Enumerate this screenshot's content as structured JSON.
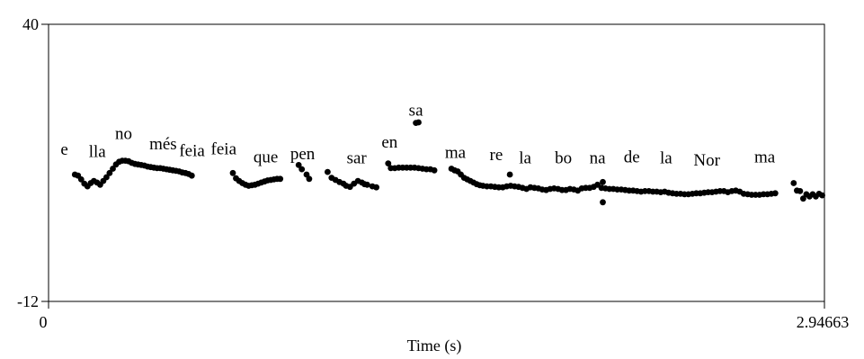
{
  "chart_data": {
    "type": "scatter",
    "xlabel": "Time (s)",
    "ylabel": "",
    "xlim": [
      0,
      2.94663
    ],
    "ylim": [
      -12,
      40
    ],
    "x_tick_labels": [
      "0",
      "2.94663"
    ],
    "y_tick_labels": [
      "40",
      "-12"
    ],
    "grid": false,
    "syllables": [
      {
        "text": "e",
        "x": 0.06,
        "y": 15.5
      },
      {
        "text": "lla",
        "x": 0.185,
        "y": 15.1
      },
      {
        "text": "no",
        "x": 0.285,
        "y": 18.5
      },
      {
        "text": "més",
        "x": 0.435,
        "y": 16.5
      },
      {
        "text": "feia",
        "x": 0.545,
        "y": 15.3
      },
      {
        "text": "feia",
        "x": 0.665,
        "y": 15.6
      },
      {
        "text": "que",
        "x": 0.825,
        "y": 14.1
      },
      {
        "text": "pen",
        "x": 0.965,
        "y": 14.7
      },
      {
        "text": "sar",
        "x": 1.17,
        "y": 13.9
      },
      {
        "text": "en",
        "x": 1.295,
        "y": 16.9
      },
      {
        "text": "sa",
        "x": 1.395,
        "y": 22.9
      },
      {
        "text": "ma",
        "x": 1.545,
        "y": 14.9
      },
      {
        "text": "re",
        "x": 1.7,
        "y": 14.5
      },
      {
        "text": "la",
        "x": 1.81,
        "y": 13.9
      },
      {
        "text": "bo",
        "x": 1.955,
        "y": 13.9
      },
      {
        "text": "na",
        "x": 2.085,
        "y": 13.9
      },
      {
        "text": "de",
        "x": 2.215,
        "y": 14.1
      },
      {
        "text": "la",
        "x": 2.345,
        "y": 13.9
      },
      {
        "text": "Nor",
        "x": 2.5,
        "y": 13.5
      },
      {
        "text": "ma",
        "x": 2.72,
        "y": 14.1
      }
    ],
    "series": [
      {
        "x": [
          0.1,
          0.112,
          0.124,
          0.136,
          0.148,
          0.16,
          0.172,
          0.184,
          0.196,
          0.208,
          0.22,
          0.232,
          0.244,
          0.256,
          0.268,
          0.28,
          0.292,
          0.304,
          0.316,
          0.328,
          0.34,
          0.352,
          0.364,
          0.376,
          0.388,
          0.4,
          0.412,
          0.424,
          0.436,
          0.448,
          0.46,
          0.472,
          0.484,
          0.496,
          0.508,
          0.52,
          0.532,
          0.544,
          0.7,
          0.712,
          0.724,
          0.736,
          0.748,
          0.76,
          0.772,
          0.784,
          0.796,
          0.808,
          0.82,
          0.832,
          0.844,
          0.856,
          0.868,
          0.88,
          0.95,
          0.962,
          0.98,
          0.99,
          1.06,
          1.075,
          1.09,
          1.105,
          1.12,
          1.13,
          1.145,
          1.16,
          1.175,
          1.19,
          1.2,
          1.21,
          1.23,
          1.245,
          1.29,
          1.3,
          1.315,
          1.33,
          1.345,
          1.36,
          1.375,
          1.39,
          1.405,
          1.42,
          1.435,
          1.45,
          1.465,
          1.395,
          1.405,
          1.53,
          1.542,
          1.554,
          1.566,
          1.578,
          1.59,
          1.602,
          1.614,
          1.626,
          1.638,
          1.65,
          1.665,
          1.68,
          1.695,
          1.71,
          1.725,
          1.74,
          1.755,
          1.77,
          1.785,
          1.8,
          1.815,
          1.83,
          1.845,
          1.86,
          1.875,
          1.89,
          1.905,
          1.92,
          1.935,
          1.95,
          1.965,
          1.98,
          1.995,
          2.01,
          2.025,
          2.04,
          2.055,
          2.07,
          2.085,
          2.1,
          2.115,
          2.13,
          2.145,
          2.16,
          2.175,
          2.19,
          2.205,
          2.22,
          2.235,
          2.25,
          2.265,
          2.28,
          2.295,
          2.31,
          2.325,
          2.34,
          2.355,
          2.37,
          2.385,
          2.4,
          2.415,
          2.43,
          2.445,
          2.46,
          2.475,
          2.49,
          2.505,
          2.52,
          2.535,
          2.55,
          2.565,
          2.58,
          2.595,
          2.61,
          2.625,
          2.64,
          2.655,
          2.67,
          2.685,
          2.7,
          2.715,
          2.73,
          2.745,
          2.76,
          1.752,
          2.105,
          2.105,
          2.83,
          2.842,
          2.854,
          2.866,
          2.878,
          2.89,
          2.902,
          2.914,
          2.926,
          2.938
        ],
        "y": [
          11.8,
          11.6,
          10.9,
          10.1,
          9.6,
          10.2,
          10.6,
          10.3,
          9.9,
          10.6,
          11.3,
          12.1,
          12.9,
          13.7,
          14.2,
          14.4,
          14.4,
          14.3,
          14.0,
          13.8,
          13.7,
          13.6,
          13.5,
          13.3,
          13.2,
          13.1,
          13.0,
          13.0,
          12.9,
          12.8,
          12.7,
          12.6,
          12.5,
          12.4,
          12.2,
          12.1,
          11.9,
          11.6,
          12.1,
          11.1,
          10.6,
          10.2,
          9.9,
          9.7,
          9.8,
          9.9,
          10.1,
          10.3,
          10.5,
          10.7,
          10.8,
          10.9,
          11.0,
          11.0,
          13.6,
          12.8,
          11.8,
          11.0,
          12.3,
          11.2,
          10.8,
          10.4,
          10.1,
          9.7,
          9.5,
          10.1,
          10.6,
          10.3,
          10.0,
          9.9,
          9.6,
          9.4,
          13.9,
          13.0,
          13.0,
          13.1,
          13.1,
          13.1,
          13.1,
          13.1,
          13.0,
          12.9,
          12.8,
          12.8,
          12.6,
          21.5,
          21.6,
          12.9,
          12.6,
          12.4,
          11.8,
          11.2,
          10.9,
          10.6,
          10.3,
          10.0,
          9.8,
          9.7,
          9.6,
          9.6,
          9.5,
          9.4,
          9.4,
          9.6,
          9.7,
          9.6,
          9.5,
          9.3,
          9.1,
          9.4,
          9.3,
          9.2,
          9.0,
          8.9,
          9.1,
          9.2,
          9.1,
          8.9,
          8.9,
          9.1,
          9.0,
          8.8,
          9.2,
          9.3,
          9.3,
          9.5,
          9.9,
          9.3,
          9.2,
          9.1,
          9.1,
          9.0,
          9.0,
          8.9,
          8.8,
          8.8,
          8.7,
          8.6,
          8.7,
          8.7,
          8.6,
          8.6,
          8.5,
          8.6,
          8.4,
          8.3,
          8.2,
          8.2,
          8.1,
          8.1,
          8.2,
          8.3,
          8.3,
          8.4,
          8.5,
          8.5,
          8.6,
          8.7,
          8.7,
          8.5,
          8.7,
          8.8,
          8.6,
          8.2,
          8.1,
          8.0,
          8.0,
          8.0,
          8.1,
          8.1,
          8.2,
          8.3,
          11.8,
          10.4,
          6.6,
          10.2,
          8.8,
          8.7,
          7.3,
          8.1,
          7.7,
          8.1,
          7.7,
          8.2,
          7.9
        ]
      }
    ]
  }
}
